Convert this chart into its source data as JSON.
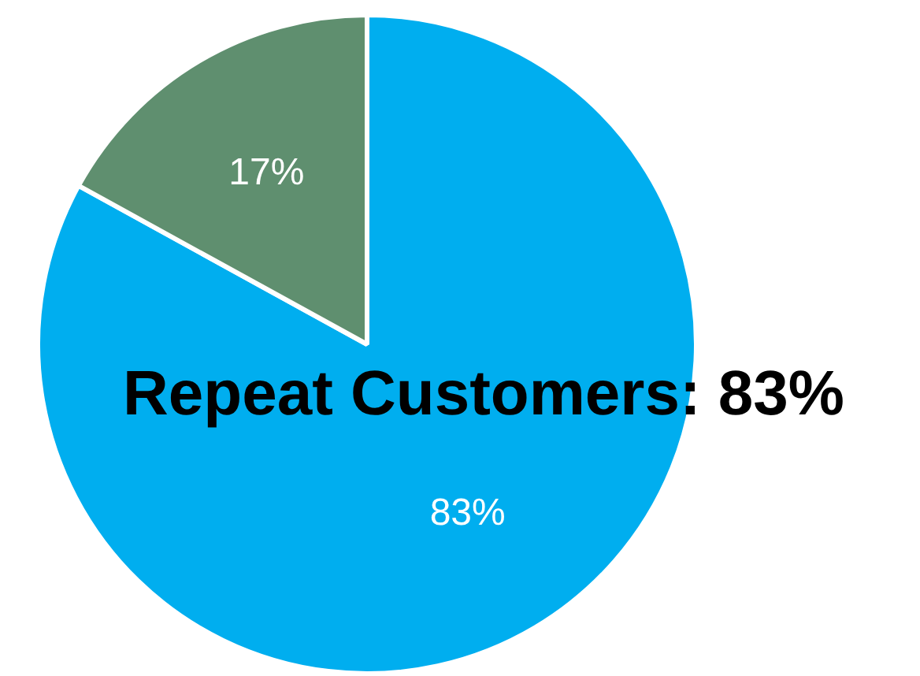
{
  "chart_data": {
    "type": "pie",
    "categories": [
      null,
      null
    ],
    "values": [
      83,
      17
    ],
    "colors": [
      "#00aeef",
      "#5f8f6f"
    ],
    "value_labels": [
      "83%",
      "17%"
    ],
    "legend": false,
    "annotations": [
      "Repeat Customers: 83%"
    ]
  }
}
